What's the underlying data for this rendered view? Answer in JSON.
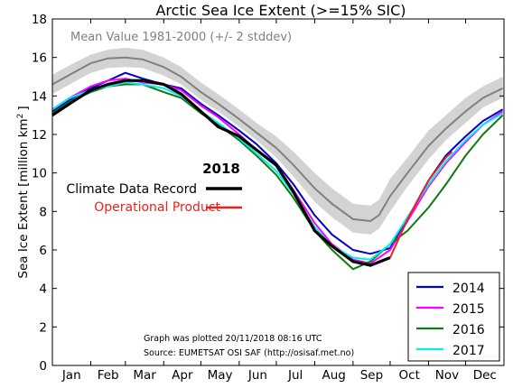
{
  "chart_data": {
    "type": "line",
    "title": "Arctic Sea Ice Extent (>=15% SIC)",
    "xlabel": "",
    "ylabel": "Sea Ice Extent [million km",
    "ylabel_sup": "2",
    "ylabel_end": "]",
    "ylim": [
      0,
      18
    ],
    "xlim": [
      1,
      366
    ],
    "yticks": [
      0,
      2,
      4,
      6,
      8,
      10,
      12,
      14,
      16,
      18
    ],
    "month_labels": [
      "Jan",
      "Feb",
      "Mar",
      "Apr",
      "May",
      "Jun",
      "Jul",
      "Aug",
      "Sep",
      "Oct",
      "Nov",
      "Dec"
    ],
    "mean_label": "Mean Value 1981-2000 (+/- 2 stddev)",
    "mean_color": "#808080",
    "band_color": "#d3d3d3",
    "mean": {
      "x": [
        1,
        15,
        32,
        46,
        60,
        74,
        91,
        105,
        121,
        135,
        152,
        166,
        182,
        196,
        213,
        227,
        244,
        258,
        265,
        274,
        288,
        305,
        319,
        335,
        349,
        365
      ],
      "y": [
        14.6,
        15.1,
        15.7,
        15.95,
        16.0,
        15.9,
        15.5,
        15.0,
        14.2,
        13.6,
        12.8,
        12.1,
        11.3,
        10.4,
        9.2,
        8.4,
        7.6,
        7.5,
        7.8,
        8.8,
        10.0,
        11.4,
        12.3,
        13.2,
        13.9,
        14.4
      ],
      "lower": [
        14.1,
        14.6,
        15.2,
        15.45,
        15.5,
        15.45,
        15.05,
        14.6,
        13.8,
        13.2,
        12.4,
        11.7,
        10.8,
        9.8,
        8.5,
        7.7,
        6.9,
        6.8,
        7.1,
        8.0,
        9.3,
        10.7,
        11.7,
        12.6,
        13.4,
        13.9
      ],
      "upper": [
        15.1,
        15.6,
        16.15,
        16.4,
        16.5,
        16.4,
        16.0,
        15.5,
        14.7,
        14.1,
        13.3,
        12.6,
        11.9,
        11.1,
        10.0,
        9.2,
        8.4,
        8.3,
        8.6,
        9.7,
        10.8,
        12.2,
        13.0,
        13.9,
        14.5,
        15.0
      ]
    },
    "year_label": "2018",
    "legend_top": [
      {
        "name": "Climate Data Record",
        "color": "#000000",
        "text_color": "#000000"
      },
      {
        "name": "Operational Product",
        "color": "#e8231e",
        "text_color": "#e8231e"
      }
    ],
    "series": [
      {
        "name": "2014",
        "color": "#0000cc",
        "x": [
          1,
          15,
          32,
          46,
          60,
          74,
          91,
          105,
          121,
          135,
          152,
          166,
          182,
          196,
          213,
          227,
          244,
          258,
          274,
          288,
          305,
          319,
          335,
          349,
          365
        ],
        "y": [
          13.2,
          13.8,
          14.4,
          14.8,
          15.2,
          14.9,
          14.6,
          14.4,
          13.6,
          13.0,
          12.2,
          11.5,
          10.5,
          9.4,
          7.8,
          6.8,
          6.0,
          5.8,
          6.1,
          7.6,
          9.6,
          10.9,
          11.9,
          12.7,
          13.3
        ]
      },
      {
        "name": "2015",
        "color": "#ff00ff",
        "x": [
          1,
          15,
          32,
          46,
          60,
          74,
          91,
          105,
          121,
          135,
          152,
          166,
          182,
          196,
          213,
          227,
          244,
          258,
          274,
          288,
          305,
          319,
          335,
          349,
          365
        ],
        "y": [
          13.3,
          13.9,
          14.5,
          14.8,
          14.9,
          14.7,
          14.6,
          14.3,
          13.5,
          12.9,
          12.0,
          11.2,
          10.4,
          9.1,
          7.4,
          6.3,
          5.5,
          5.3,
          6.0,
          7.5,
          9.3,
          10.5,
          11.6,
          12.5,
          13.2
        ]
      },
      {
        "name": "2016",
        "color": "#107a10",
        "x": [
          1,
          15,
          32,
          46,
          60,
          74,
          91,
          105,
          121,
          135,
          152,
          166,
          182,
          196,
          213,
          227,
          244,
          258,
          274,
          288,
          305,
          319,
          335,
          349,
          365
        ],
        "y": [
          13.1,
          13.7,
          14.2,
          14.5,
          14.6,
          14.6,
          14.2,
          13.9,
          13.1,
          12.5,
          11.7,
          10.9,
          9.9,
          8.7,
          7.0,
          6.0,
          5.0,
          5.4,
          6.3,
          7.0,
          8.2,
          9.4,
          10.9,
          12.0,
          13.0
        ]
      },
      {
        "name": "2017",
        "color": "#00eeee",
        "x": [
          1,
          15,
          32,
          46,
          60,
          74,
          91,
          105,
          121,
          135,
          152,
          166,
          182,
          196,
          213,
          227,
          244,
          258,
          274,
          288,
          305,
          319,
          335,
          349,
          365
        ],
        "y": [
          13.3,
          13.9,
          14.3,
          14.5,
          14.7,
          14.6,
          14.4,
          14.0,
          13.2,
          12.6,
          11.8,
          11.0,
          10.1,
          8.9,
          7.2,
          6.2,
          5.6,
          5.5,
          6.3,
          7.7,
          9.4,
          10.6,
          11.7,
          12.5,
          13.1
        ]
      },
      {
        "name": "2018 Climate Data Record",
        "color": "#000000",
        "x": [
          1,
          15,
          32,
          46,
          60,
          74,
          91,
          105,
          121,
          135,
          152,
          166,
          182,
          196,
          213,
          227,
          244,
          258,
          274
        ],
        "y": [
          13.0,
          13.6,
          14.3,
          14.6,
          14.8,
          14.8,
          14.6,
          14.1,
          13.2,
          12.4,
          11.9,
          11.2,
          10.4,
          9.0,
          7.0,
          6.2,
          5.4,
          5.2,
          5.6
        ]
      },
      {
        "name": "2018 Operational Product",
        "color": "#e8231e",
        "x": [
          274,
          288,
          305,
          319,
          324
        ],
        "y": [
          5.6,
          7.6,
          9.6,
          10.8,
          11.1
        ]
      }
    ],
    "legend_box": [
      "2014",
      "2015",
      "2016",
      "2017"
    ],
    "note_line1": "Graph was plotted 20/11/2018 08:16 UTC",
    "note_line2": "Source: EUMETSAT OSI SAF (http://osisaf.met.no)",
    "legend_placement": "bottom-right",
    "grid": false
  }
}
